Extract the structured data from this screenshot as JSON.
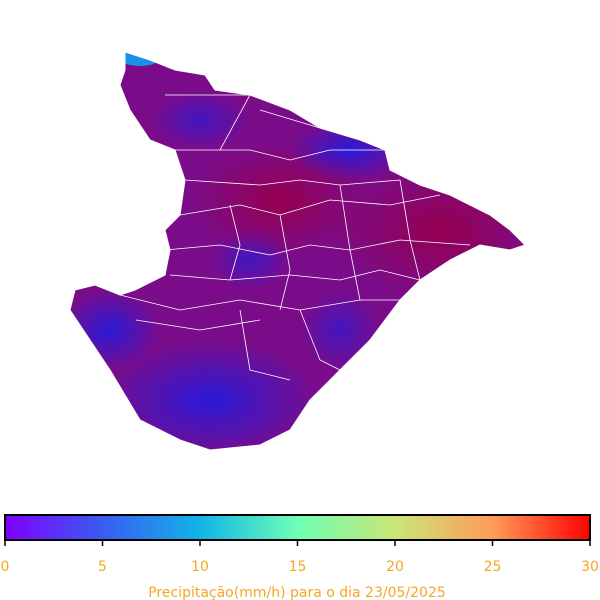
{
  "colorbar": {
    "label": "Precipitação(mm/h) para o dia 23/05/2025",
    "lim": [
      0,
      30
    ],
    "ticks": [
      0,
      5,
      10,
      15,
      20,
      25,
      30
    ],
    "colors": [
      "#7f00ff",
      "#3a5cf2",
      "#12b4e8",
      "#6effb4",
      "#c8e676",
      "#ff9c5a",
      "#ff0000"
    ]
  }
}
